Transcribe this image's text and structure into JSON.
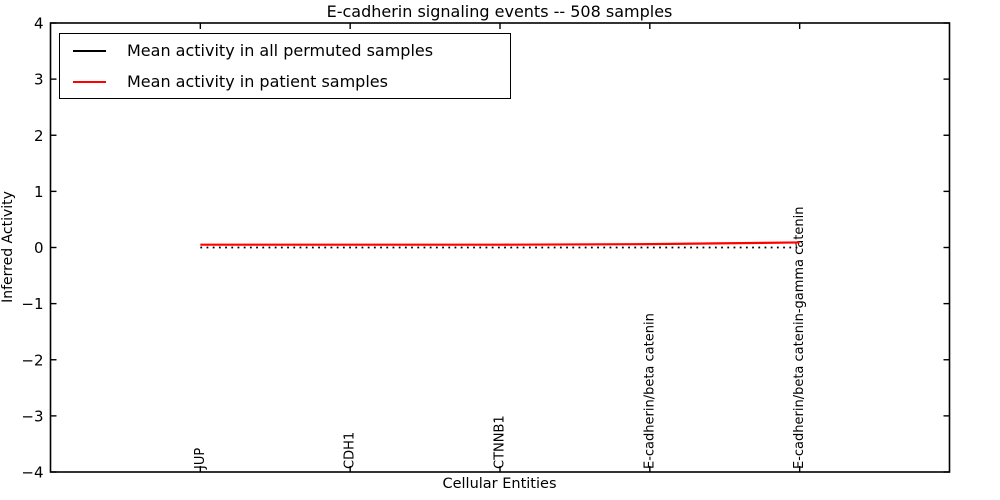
{
  "title": "E-cadherin signaling events -- 508 samples",
  "legend": {
    "items": [
      {
        "label": "Mean activity in all permuted samples",
        "color": "#000000"
      },
      {
        "label": "Mean activity in patient samples",
        "color": "#ff0000"
      }
    ]
  },
  "colors": {
    "permuted_line": "#000000",
    "patient_line": "#ff0000",
    "frame": "#000000",
    "background": "#ffffff"
  },
  "chart_data": {
    "type": "line",
    "title": "E-cadherin signaling events -- 508 samples",
    "xlabel": "Cellular Entities",
    "ylabel": "Inferred Activity",
    "categories": [
      "JUP",
      "CDH1",
      "CTNNB1",
      "E-cadherin/beta catenin",
      "E-cadherin/beta catenin-gamma catenin"
    ],
    "series": [
      {
        "name": "Mean activity in all permuted samples",
        "color": "#000000",
        "line_style": "dotted",
        "values": [
          0.0,
          0.0,
          0.0,
          0.0,
          0.0
        ]
      },
      {
        "name": "Mean activity in patient samples",
        "color": "#ff0000",
        "line_style": "solid",
        "values": [
          0.05,
          0.05,
          0.05,
          0.06,
          0.09
        ]
      }
    ],
    "ylim": [
      -4,
      4
    ],
    "xlim": [
      -1,
      5
    ],
    "yticks": [
      -4,
      -3,
      -2,
      -1,
      0,
      1,
      2,
      3,
      4
    ],
    "grid": false,
    "legend_position": "upper left",
    "x_tick_label_rotation": 90
  }
}
